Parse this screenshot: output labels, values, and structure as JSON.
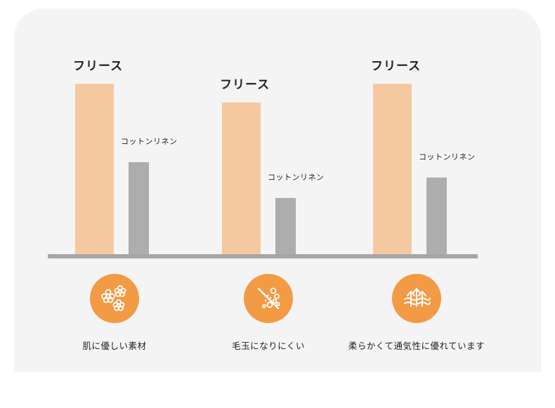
{
  "colors": {
    "fleece": "#f5c9a0",
    "cotton_linen": "#adadad",
    "baseline": "#a5a5a5",
    "icon_circle": "#f39a45",
    "panel_background": "#f5f4f4"
  },
  "chart_data": {
    "type": "bar",
    "categories": [
      "肌に優しい素材",
      "毛玉になりにくい",
      "柔らかくて通気性に優れています"
    ],
    "series": [
      {
        "name": "フリース",
        "values": [
          100,
          89,
          100
        ]
      },
      {
        "name": "コットンリネン",
        "values": [
          54,
          33,
          45
        ]
      }
    ],
    "ylim": [
      0,
      110
    ],
    "title": "",
    "xlabel": "",
    "ylabel": "",
    "grid": false,
    "legend": "none"
  },
  "features": [
    {
      "icon": "flower-icon",
      "caption": "肌に優しい素材"
    },
    {
      "icon": "no-pilling-icon",
      "caption": "毛玉になりにくい"
    },
    {
      "icon": "breathable-arrows-icon",
      "caption": "柔らかくて通気性に優れています"
    }
  ]
}
